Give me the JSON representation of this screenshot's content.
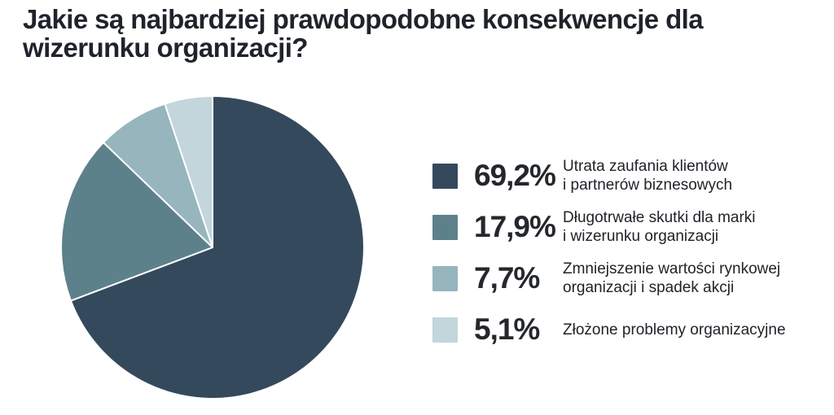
{
  "title": "Jakie są najbardziej prawdopodobne konsekwencje dla\nwizerunku organizacji?",
  "background_color": "#ffffff",
  "title_color": "#1f232b",
  "chart_data": {
    "type": "pie",
    "title": "Jakie są najbardziej prawdopodobne konsekwencje dla wizerunku organizacji?",
    "legend_position": "right",
    "start_angle_deg": -90,
    "direction": "clockwise",
    "separator_color": "#ffffff",
    "slices": [
      {
        "pct_label": "69,2%",
        "value": 69.2,
        "color": "#35495c",
        "label": "Utrata zaufania klientów\ni partnerów biznesowych"
      },
      {
        "pct_label": "17,9%",
        "value": 17.9,
        "color": "#5d818a",
        "label": "Długotrwałe skutki dla marki\ni wizerunku organizacji"
      },
      {
        "pct_label": "7,7%",
        "value": 7.7,
        "color": "#97b5bd",
        "label": "Zmniejszenie wartości rynkowej\norganizacji i spadek akcji"
      },
      {
        "pct_label": "5,1%",
        "value": 5.1,
        "color": "#c2d6db",
        "label": "Złożone problemy organizacyjne"
      }
    ]
  }
}
